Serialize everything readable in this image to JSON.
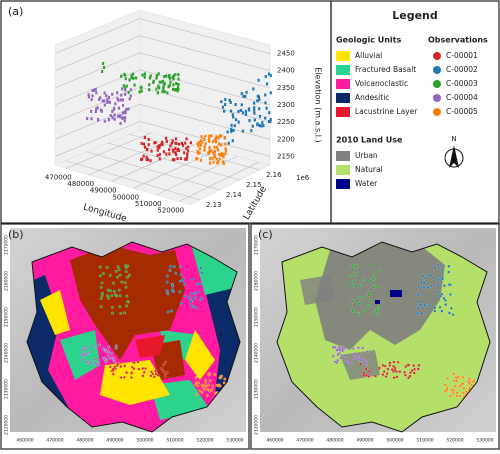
{
  "panel_a": {
    "label": "(a)",
    "x_axis_label": "Longitude",
    "y_axis_label": "Latitude",
    "z_axis_label": "Elevation (m.a.s.l.)",
    "x_ticks": [
      "470000",
      "480000",
      "490000",
      "500000",
      "510000",
      "520000"
    ],
    "y_ticks": [
      "2.13",
      "2.14",
      "2.15",
      "2.16"
    ],
    "y_offset": "1e6",
    "z_ticks": [
      "2150",
      "2200",
      "2250",
      "2300",
      "2350",
      "2400",
      "2450"
    ]
  },
  "legend": {
    "title": "Legend",
    "geologic_units": {
      "title": "Geologic Units",
      "items": [
        {
          "label": "Alluvial",
          "color": "#ffe400"
        },
        {
          "label": "Fractured Basalt",
          "color": "#2bd38c"
        },
        {
          "label": "Volcanoclastic",
          "color": "#ff1aa0"
        },
        {
          "label": "Andesitic",
          "color": "#0a2a68"
        },
        {
          "label": "Lacustrine Layer",
          "color": "#e8182c"
        }
      ]
    },
    "observations": {
      "title": "Observations",
      "items": [
        {
          "label": "C-00001",
          "color": "#d62728"
        },
        {
          "label": "C-00002",
          "color": "#1f77b4"
        },
        {
          "label": "C-00003",
          "color": "#2ca02c"
        },
        {
          "label": "C-00004",
          "color": "#9467bd"
        },
        {
          "label": "C-00005",
          "color": "#ff7f0e"
        }
      ]
    },
    "land_use": {
      "title": "2010 Land Use",
      "items": [
        {
          "label": "Urban",
          "color": "#7f7f7f"
        },
        {
          "label": "Natural",
          "color": "#b4e06a"
        },
        {
          "label": "Water",
          "color": "#00008b"
        }
      ]
    },
    "north": "N"
  },
  "panel_b": {
    "label": "(b)",
    "x_ticks": [
      "460000",
      "470000",
      "480000",
      "490000",
      "500000",
      "510000",
      "520000",
      "530000"
    ],
    "y_ticks": [
      "2170000",
      "2160000",
      "2150000",
      "2140000",
      "2130000",
      "2120000"
    ]
  },
  "panel_c": {
    "label": "(c)"
  }
}
